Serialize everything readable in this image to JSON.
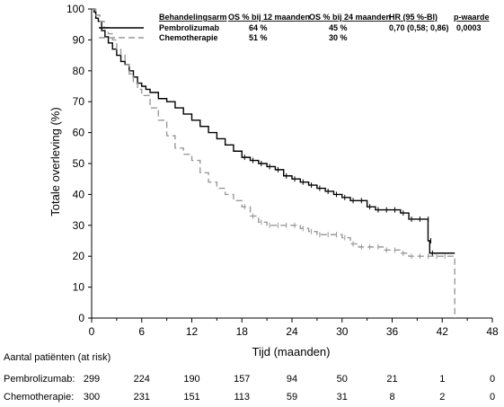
{
  "chart_data": {
    "type": "line",
    "subtype": "kaplan-meier",
    "xlabel": "Tijd (maanden)",
    "ylabel": "Totale overleving (%)",
    "xlim": [
      0,
      48
    ],
    "ylim": [
      0,
      100
    ],
    "xticks": [
      0,
      6,
      12,
      18,
      24,
      30,
      36,
      42,
      48
    ],
    "yticks": [
      0,
      10,
      20,
      30,
      40,
      50,
      60,
      70,
      80,
      90,
      100
    ],
    "grid": false,
    "legend": {
      "placement": "top-right",
      "headers": [
        "Behandelingsarm",
        "OS % bij 12 maanden",
        "OS % bij 24 maanden",
        "HR (95 %-BI)",
        "p-waarde"
      ],
      "rows": [
        {
          "name": "Pembrolizumab",
          "os12": "64 %",
          "os24": "45 %",
          "hr": "0,70 (0,58; 0,86)",
          "p": "0,0003"
        },
        {
          "name": "Chemotherapie",
          "os12": "51 %",
          "os24": "30 %",
          "hr": "",
          "p": ""
        }
      ]
    },
    "series": [
      {
        "name": "Pembrolizumab",
        "color": "#000000",
        "style": "solid",
        "points": [
          [
            0,
            100
          ],
          [
            0.3,
            99
          ],
          [
            0.5,
            97
          ],
          [
            0.8,
            96
          ],
          [
            1.2,
            93
          ],
          [
            1.6,
            91
          ],
          [
            2,
            89
          ],
          [
            2.5,
            87
          ],
          [
            3,
            85
          ],
          [
            3.5,
            83
          ],
          [
            4,
            82
          ],
          [
            4.5,
            80
          ],
          [
            5,
            78
          ],
          [
            5.5,
            76
          ],
          [
            6,
            75
          ],
          [
            6.5,
            74
          ],
          [
            7,
            73
          ],
          [
            8,
            71
          ],
          [
            9,
            70
          ],
          [
            10,
            68
          ],
          [
            11,
            66
          ],
          [
            12,
            64
          ],
          [
            13,
            62
          ],
          [
            14,
            60
          ],
          [
            15,
            58
          ],
          [
            16,
            56
          ],
          [
            17,
            54
          ],
          [
            18,
            52
          ],
          [
            19,
            51
          ],
          [
            20,
            50
          ],
          [
            21,
            49
          ],
          [
            22,
            48
          ],
          [
            23,
            46
          ],
          [
            24,
            45
          ],
          [
            25,
            44
          ],
          [
            26,
            43
          ],
          [
            27,
            42
          ],
          [
            28,
            41
          ],
          [
            29,
            40
          ],
          [
            30,
            39
          ],
          [
            31,
            38
          ],
          [
            32,
            38
          ],
          [
            33,
            36
          ],
          [
            34,
            35
          ],
          [
            35,
            35
          ],
          [
            36,
            35
          ],
          [
            37,
            34
          ],
          [
            38,
            32
          ],
          [
            39,
            32
          ],
          [
            40,
            32
          ],
          [
            40.3,
            25
          ],
          [
            40.5,
            21
          ],
          [
            43.5,
            21
          ]
        ]
      },
      {
        "name": "Chemotherapie",
        "color": "#999999",
        "style": "dashed",
        "points": [
          [
            0,
            100
          ],
          [
            0.5,
            98
          ],
          [
            1,
            96
          ],
          [
            1.5,
            94
          ],
          [
            2,
            92
          ],
          [
            2.5,
            90
          ],
          [
            3,
            87
          ],
          [
            3.5,
            85
          ],
          [
            4,
            82
          ],
          [
            4.5,
            79
          ],
          [
            5,
            76
          ],
          [
            5.5,
            74
          ],
          [
            6,
            72
          ],
          [
            7,
            68
          ],
          [
            8,
            64
          ],
          [
            9,
            59
          ],
          [
            10,
            55
          ],
          [
            11,
            53
          ],
          [
            12,
            51
          ],
          [
            13,
            47
          ],
          [
            14,
            44
          ],
          [
            15,
            42
          ],
          [
            16,
            40
          ],
          [
            17,
            38
          ],
          [
            18,
            36
          ],
          [
            19,
            33
          ],
          [
            20,
            31
          ],
          [
            21,
            30
          ],
          [
            22,
            30
          ],
          [
            23,
            30
          ],
          [
            24,
            30
          ],
          [
            25,
            29
          ],
          [
            26,
            28
          ],
          [
            27,
            27
          ],
          [
            28,
            27
          ],
          [
            29,
            27
          ],
          [
            30,
            26
          ],
          [
            31,
            24
          ],
          [
            32,
            23
          ],
          [
            33,
            23
          ],
          [
            34,
            23
          ],
          [
            35,
            22
          ],
          [
            36,
            22
          ],
          [
            37,
            21
          ],
          [
            38,
            20
          ],
          [
            39,
            20
          ],
          [
            40,
            20
          ],
          [
            41,
            20
          ],
          [
            42,
            20
          ],
          [
            43.5,
            20
          ],
          [
            43.5,
            0
          ]
        ]
      }
    ],
    "risk_table": {
      "title": "Aantal patiënten (at risk)",
      "times": [
        0,
        6,
        12,
        18,
        24,
        30,
        36,
        42,
        48
      ],
      "rows": [
        {
          "label": "Pembrolizumab:",
          "values": [
            "299",
            "224",
            "190",
            "157",
            "94",
            "50",
            "21",
            "1",
            "0"
          ]
        },
        {
          "label": "Chemotherapie:",
          "values": [
            "300",
            "231",
            "151",
            "113",
            "59",
            "31",
            "8",
            "2",
            "0"
          ]
        }
      ]
    }
  }
}
